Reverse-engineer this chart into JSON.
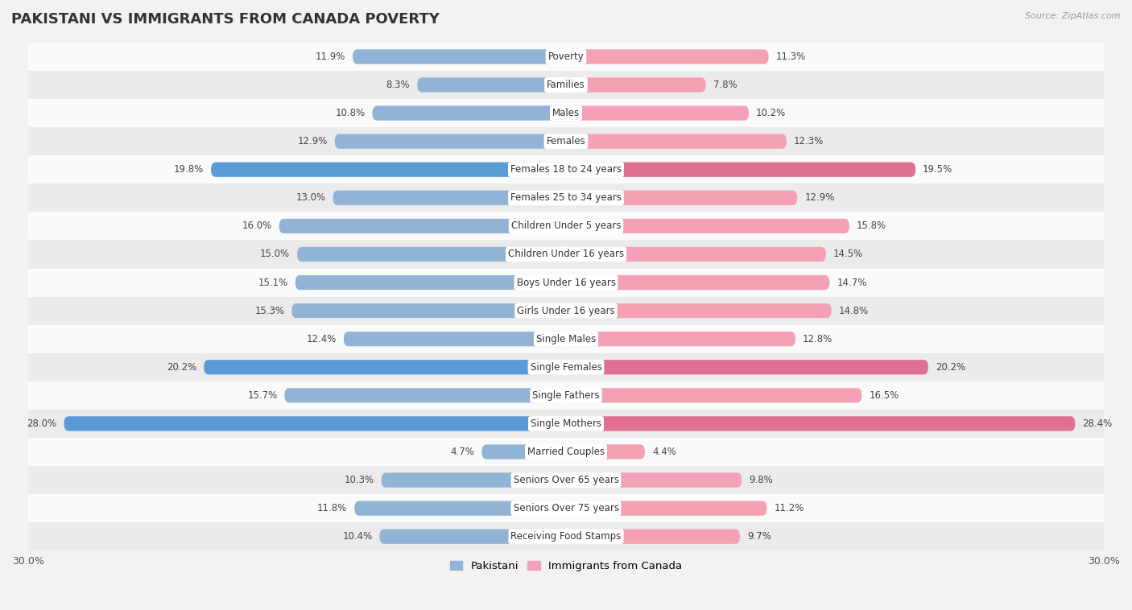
{
  "title": "PAKISTANI VS IMMIGRANTS FROM CANADA POVERTY",
  "source": "Source: ZipAtlas.com",
  "categories": [
    "Poverty",
    "Families",
    "Males",
    "Females",
    "Females 18 to 24 years",
    "Females 25 to 34 years",
    "Children Under 5 years",
    "Children Under 16 years",
    "Boys Under 16 years",
    "Girls Under 16 years",
    "Single Males",
    "Single Females",
    "Single Fathers",
    "Single Mothers",
    "Married Couples",
    "Seniors Over 65 years",
    "Seniors Over 75 years",
    "Receiving Food Stamps"
  ],
  "pakistani": [
    11.9,
    8.3,
    10.8,
    12.9,
    19.8,
    13.0,
    16.0,
    15.0,
    15.1,
    15.3,
    12.4,
    20.2,
    15.7,
    28.0,
    4.7,
    10.3,
    11.8,
    10.4
  ],
  "canada": [
    11.3,
    7.8,
    10.2,
    12.3,
    19.5,
    12.9,
    15.8,
    14.5,
    14.7,
    14.8,
    12.8,
    20.2,
    16.5,
    28.4,
    4.4,
    9.8,
    11.2,
    9.7
  ],
  "pakistani_color": "#92b4d4",
  "canada_color": "#f4a0b5",
  "highlight_pakistani": [
    4,
    11,
    13
  ],
  "highlight_canada": [
    4,
    11,
    13
  ],
  "highlight_pakistani_color": "#5b9bd5",
  "highlight_canada_color": "#e07090",
  "axis_limit": 30.0,
  "background_color": "#f2f2f2",
  "row_color_light": "#fafafa",
  "row_color_dark": "#ebebeb",
  "legend_pakistani": "Pakistani",
  "legend_canada": "Immigrants from Canada",
  "title_fontsize": 13,
  "label_fontsize": 8.5,
  "value_fontsize": 8.5
}
